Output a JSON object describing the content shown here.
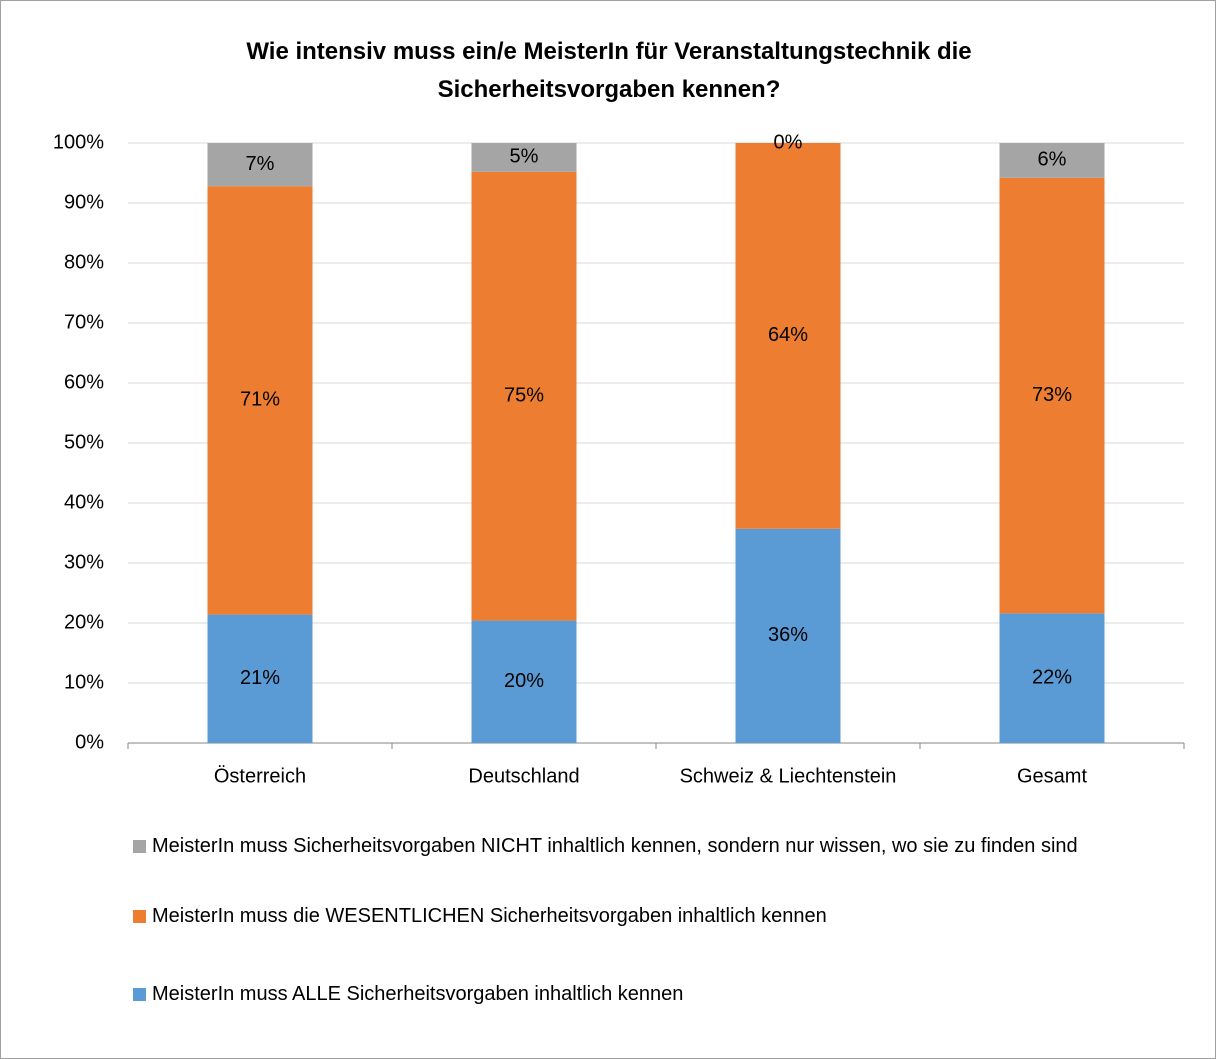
{
  "chart_data": {
    "type": "stacked_bar",
    "title": "Wie intensiv muss ein/e MeisterIn für Veranstaltungstechnik die Sicherheitsvorgaben kennen?",
    "categories": [
      "Österreich",
      "Deutschland",
      "Schweiz & Liechtenstein",
      "Gesamt"
    ],
    "series": [
      {
        "name": "MeisterIn muss ALLE Sicherheitsvorgaben inhaltlich kennen",
        "color": "#5b9bd5",
        "values": [
          21.4,
          20.4,
          35.7,
          21.6
        ],
        "value_labels": [
          "21%",
          "20%",
          "36%",
          "22%"
        ]
      },
      {
        "name": "MeisterIn muss die WESENTLICHEN Sicherheitsvorgaben inhaltlich kennen",
        "color": "#ed7d31",
        "values": [
          71.4,
          74.8,
          64.3,
          72.6
        ],
        "value_labels": [
          "71%",
          "75%",
          "64%",
          "73%"
        ]
      },
      {
        "name": "MeisterIn muss Sicherheitsvorgaben NICHT inhaltlich kennen, sondern nur wissen, wo sie zu finden sind",
        "color": "#a5a5a5",
        "values": [
          7.2,
          4.8,
          0,
          5.8
        ],
        "value_labels": [
          "7%",
          "5%",
          "0%",
          "6%"
        ]
      }
    ],
    "ylim": [
      0,
      100
    ],
    "yticks": [
      {
        "value": 0,
        "label": "0%"
      },
      {
        "value": 10,
        "label": "10%"
      },
      {
        "value": 20,
        "label": "20%"
      },
      {
        "value": 30,
        "label": "30%"
      },
      {
        "value": 40,
        "label": "40%"
      },
      {
        "value": 50,
        "label": "50%"
      },
      {
        "value": 60,
        "label": "60%"
      },
      {
        "value": 70,
        "label": "70%"
      },
      {
        "value": 80,
        "label": "80%"
      },
      {
        "value": 90,
        "label": "90%"
      },
      {
        "value": 100,
        "label": "100%"
      }
    ],
    "grid": true,
    "legend": "bottom"
  }
}
